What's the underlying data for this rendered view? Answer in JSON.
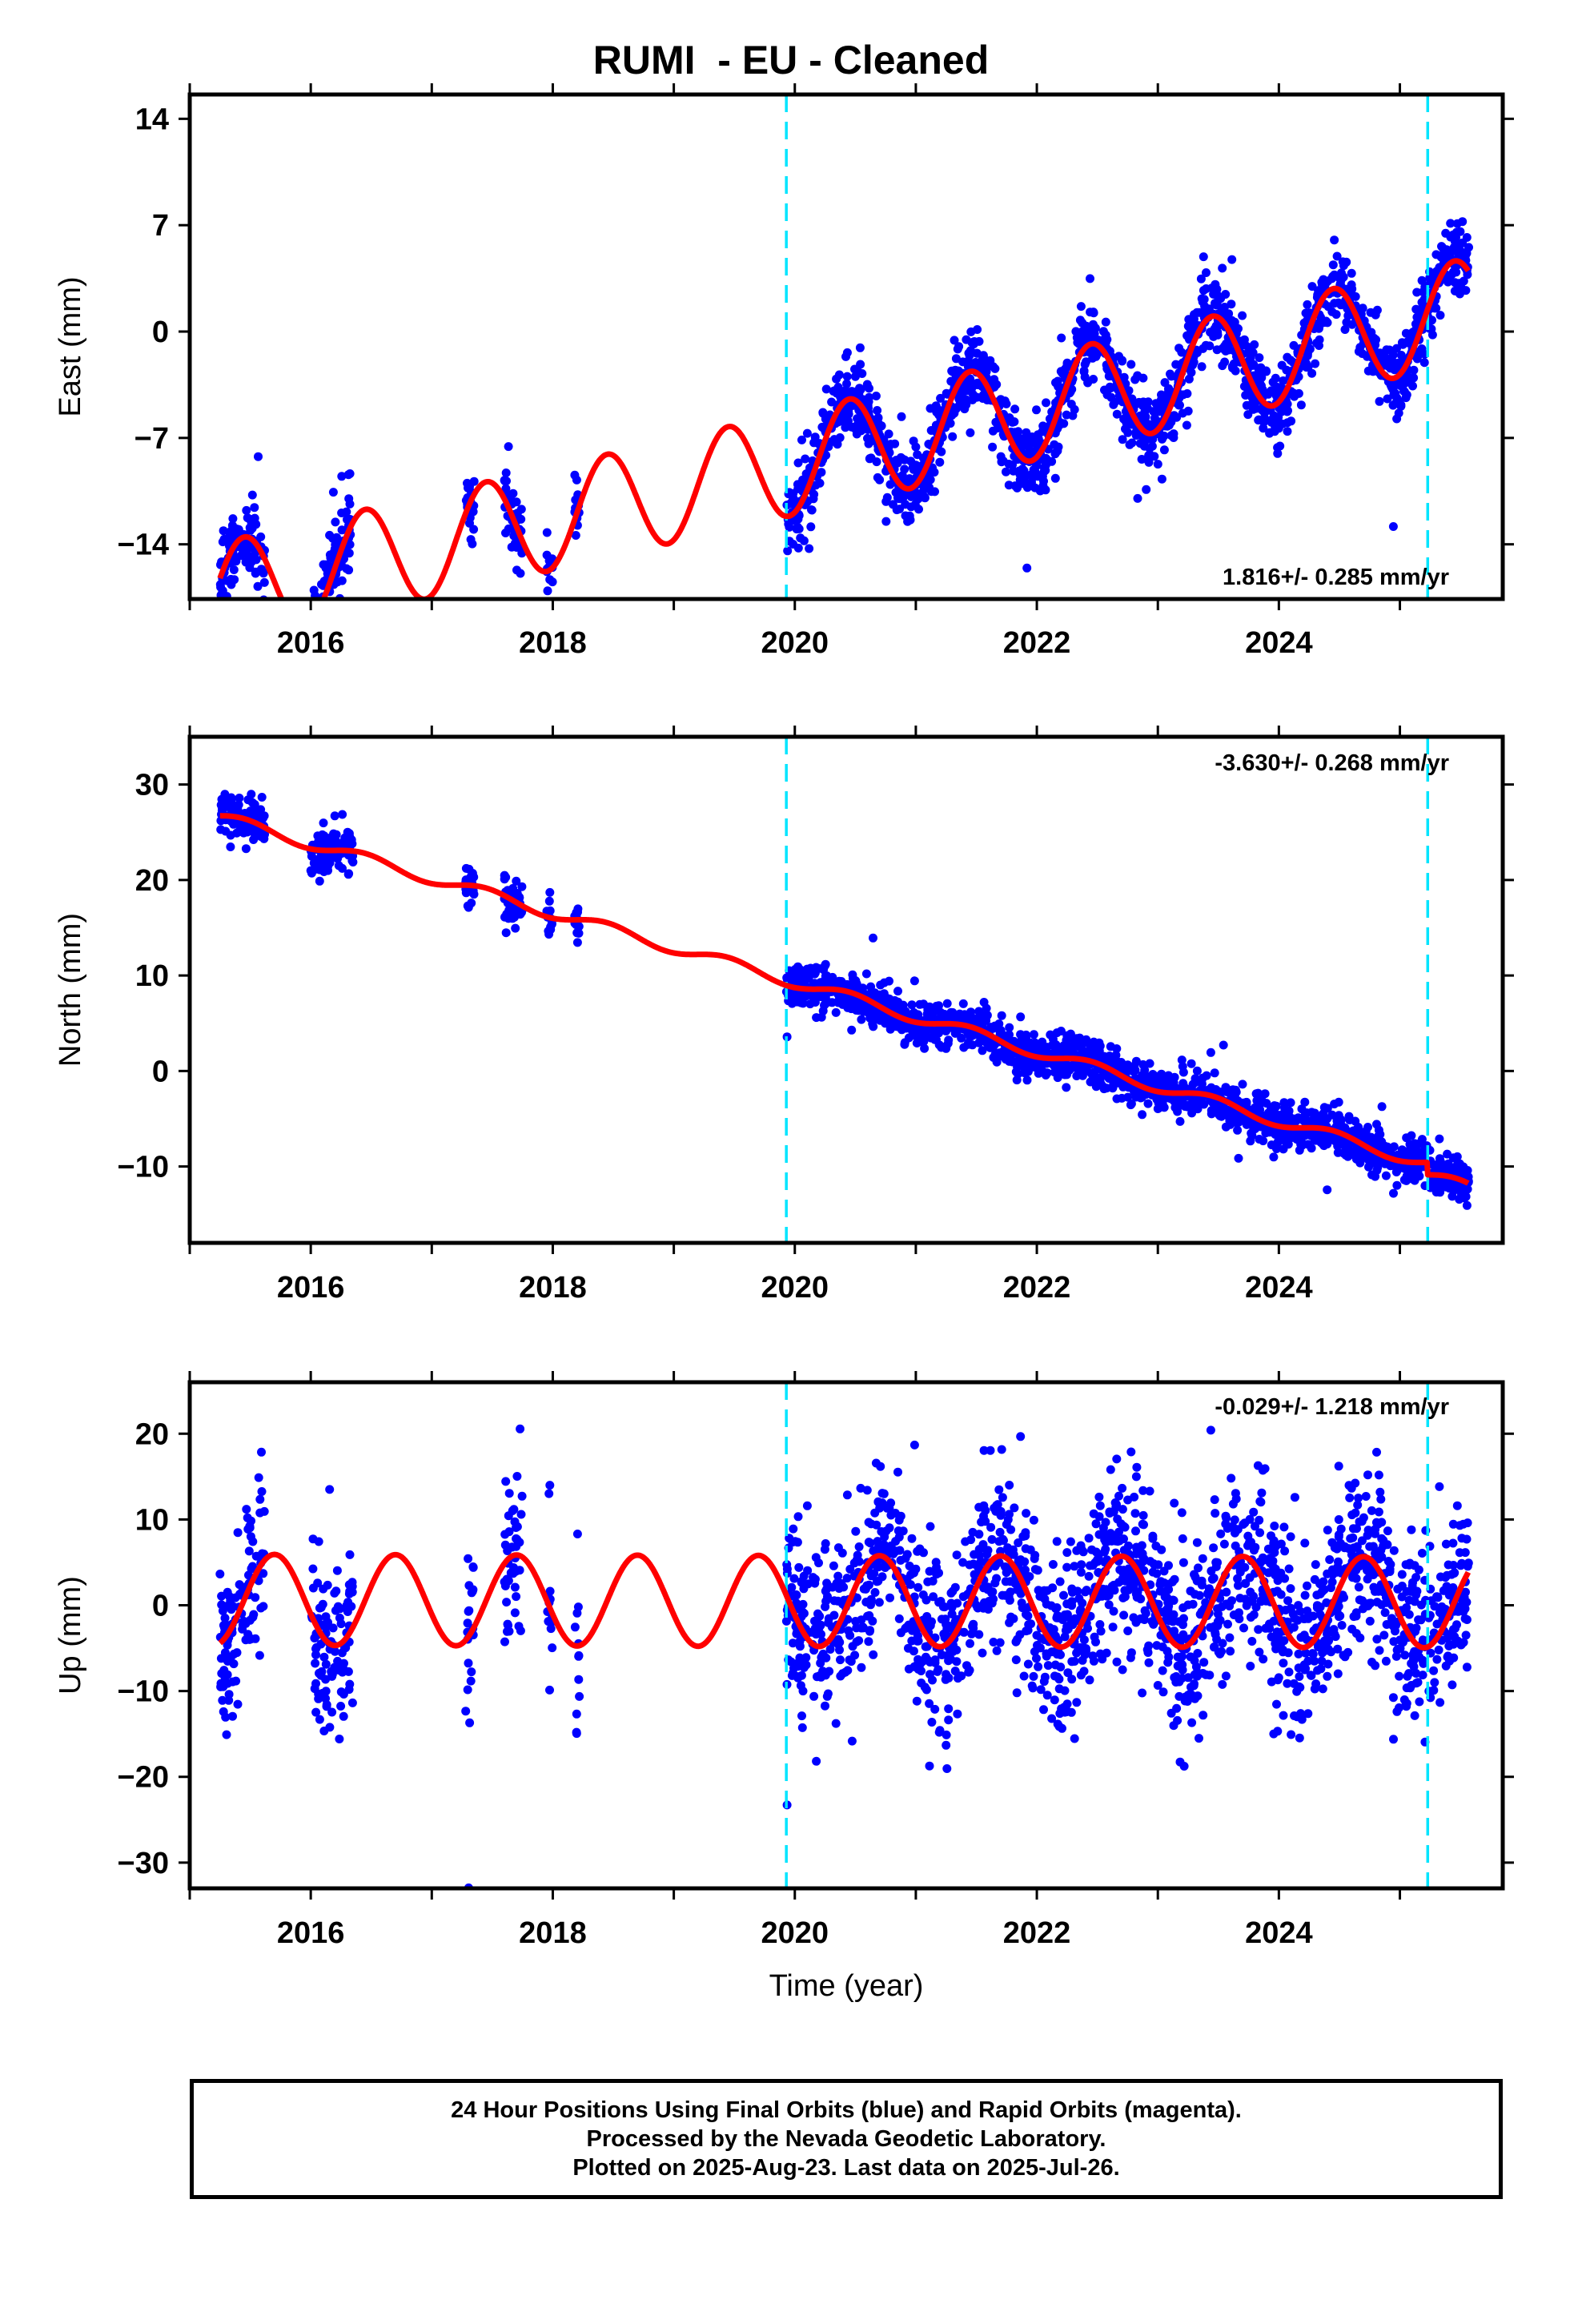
{
  "title": "RUMI  - EU - Cleaned",
  "xlabel": "Time (year)",
  "footer": {
    "line1": "24 Hour Positions Using Final Orbits (blue) and Rapid Orbits (magenta).",
    "line2": "Processed by the Nevada Geodetic Laboratory.",
    "line3": "Plotted on 2025-Aug-23. Last data on 2025-Jul-26."
  },
  "colors": {
    "points": "#0000ff",
    "fit": "#ff0000",
    "events": "#00e5ff",
    "frame": "#000000"
  },
  "chart_data": [
    {
      "type": "scatter",
      "component": "east",
      "ylabel": "East (mm)",
      "rate_label": "1.816+/- 0.285 mm/yr",
      "xlim": [
        2015.0,
        2025.85
      ],
      "ylim": [
        -17.6,
        15.6
      ],
      "yticks": [
        14,
        7,
        0,
        -7,
        -14
      ],
      "ytick_labels": [
        "14",
        "7",
        "0",
        "−7",
        "−14"
      ],
      "xticks": [
        2016,
        2018,
        2020,
        2022,
        2024
      ],
      "event_lines": [
        2019.93,
        2025.23
      ],
      "fit": {
        "offset": -8.66,
        "rate": 1.816,
        "ref": 2020.0,
        "amp": 3.4,
        "period": 1.0,
        "phase_peak": 2019.45,
        "post_offset": 0.0
      },
      "data_windows": [
        [
          2015.25,
          2015.62
        ],
        [
          2016.0,
          2016.35
        ],
        [
          2017.28,
          2017.35
        ],
        [
          2017.6,
          2017.75
        ],
        [
          2017.95,
          2018.0
        ],
        [
          2018.18,
          2018.22
        ],
        [
          2019.93,
          2025.57
        ]
      ],
      "scatter_sigma": 1.25
    },
    {
      "type": "scatter",
      "component": "north",
      "ylabel": "North (mm)",
      "rate_label": "-3.630+/- 0.268 mm/yr",
      "xlim": [
        2015.0,
        2025.85
      ],
      "ylim": [
        -18.0,
        35.0
      ],
      "yticks": [
        30,
        20,
        10,
        0,
        -10
      ],
      "ytick_labels": [
        "30",
        "20",
        "10",
        "0",
        "−10"
      ],
      "xticks": [
        2016,
        2018,
        2020,
        2022,
        2024
      ],
      "event_lines": [
        2019.93,
        2025.23
      ],
      "fit": {
        "offset": 9.3,
        "rate": -3.63,
        "ref": 2020.0,
        "amp": 0.6,
        "period": 1.0,
        "phase_peak": 2019.45,
        "post_offset": -1.3
      },
      "data_windows": [
        [
          2015.25,
          2015.62
        ],
        [
          2016.0,
          2016.35
        ],
        [
          2017.28,
          2017.35
        ],
        [
          2017.6,
          2017.75
        ],
        [
          2017.95,
          2018.0
        ],
        [
          2018.18,
          2018.22
        ],
        [
          2019.93,
          2025.57
        ]
      ],
      "scatter_sigma": 1.15
    },
    {
      "type": "scatter",
      "component": "up",
      "ylabel": "Up (mm)",
      "rate_label": "-0.029+/- 1.218 mm/yr",
      "xlim": [
        2015.0,
        2025.85
      ],
      "ylim": [
        -33.0,
        26.0
      ],
      "yticks": [
        20,
        10,
        0,
        -10,
        -20,
        -30
      ],
      "ytick_labels": [
        "20",
        "10",
        "0",
        "−10",
        "−20",
        "−30"
      ],
      "xticks": [
        2016,
        2018,
        2020,
        2022,
        2024
      ],
      "event_lines": [
        2019.93,
        2025.23
      ],
      "fit": {
        "offset": 0.5,
        "rate": -0.029,
        "ref": 2020.0,
        "amp": 5.3,
        "period": 1.0,
        "phase_peak": 2019.7,
        "post_offset": 0.0
      },
      "data_windows": [
        [
          2015.25,
          2015.62
        ],
        [
          2016.0,
          2016.35
        ],
        [
          2017.28,
          2017.35
        ],
        [
          2017.6,
          2017.75
        ],
        [
          2017.95,
          2018.0
        ],
        [
          2018.18,
          2018.22
        ],
        [
          2019.93,
          2025.57
        ]
      ],
      "scatter_sigma": 5.2
    }
  ]
}
